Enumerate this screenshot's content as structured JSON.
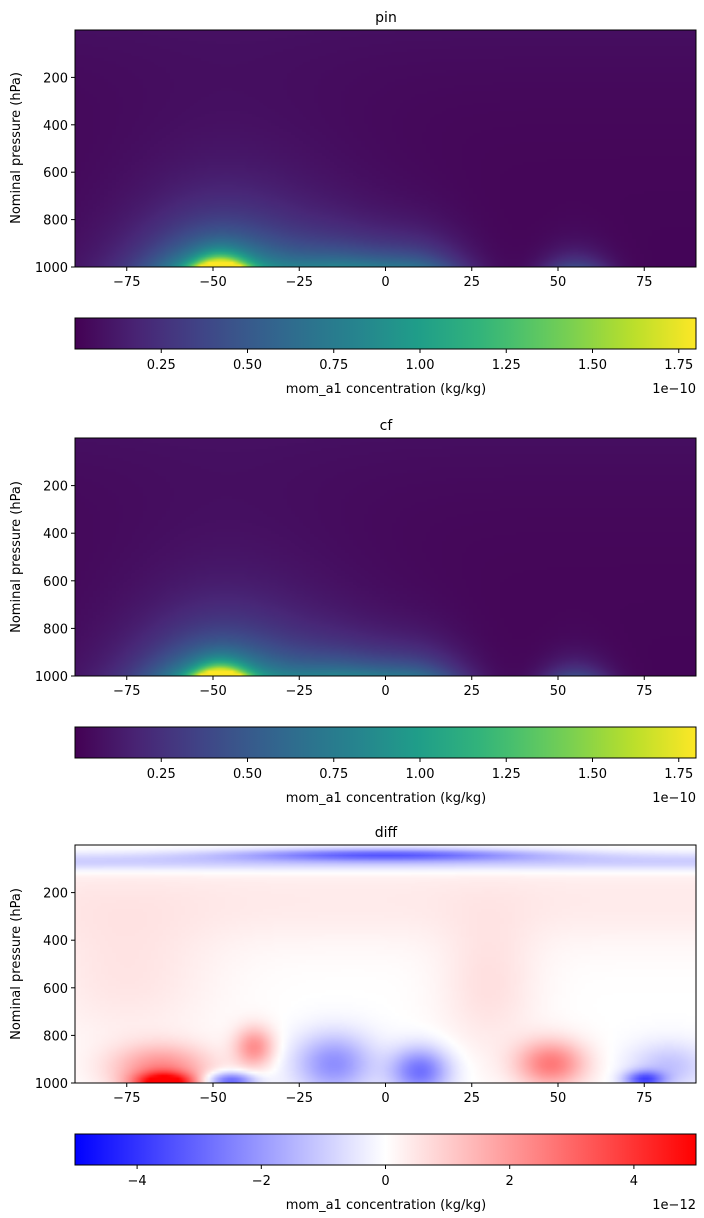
{
  "chart_data": [
    {
      "type": "heatmap",
      "title": "pin",
      "ylabel": "Nominal pressure (hPa)",
      "xlabel": "",
      "xlim": [
        -90,
        90
      ],
      "ylim": [
        1000,
        0
      ],
      "xticks": [
        "−75",
        "−50",
        "−25",
        "0",
        "25",
        "50",
        "75"
      ],
      "xtick_values": [
        -75,
        -50,
        -25,
        0,
        25,
        50,
        75
      ],
      "yticks": [
        "200",
        "400",
        "600",
        "800",
        "1000"
      ],
      "ytick_values": [
        200,
        400,
        600,
        800,
        1000
      ],
      "colormap": "viridis",
      "colorbar": {
        "label": "mom_a1 concentration (kg/kg)",
        "range": [
          0.0,
          1.8
        ],
        "ticks": [
          "0.25",
          "0.50",
          "0.75",
          "1.00",
          "1.25",
          "1.50",
          "1.75"
        ],
        "tick_values": [
          0.25,
          0.5,
          0.75,
          1.0,
          1.25,
          1.5,
          1.75
        ],
        "offset_label": "1e−10"
      },
      "features": [
        {
          "lat": -48,
          "pressure": 1000,
          "value": 1.8
        },
        {
          "lat": -12,
          "pressure": 960,
          "value": 0.6
        },
        {
          "lat": 10,
          "pressure": 960,
          "value": 0.55
        },
        {
          "lat": 55,
          "pressure": 990,
          "value": 0.45
        }
      ]
    },
    {
      "type": "heatmap",
      "title": "cf",
      "ylabel": "Nominal pressure (hPa)",
      "xlabel": "",
      "xlim": [
        -90,
        90
      ],
      "ylim": [
        1000,
        0
      ],
      "xticks": [
        "−75",
        "−50",
        "−25",
        "0",
        "25",
        "50",
        "75"
      ],
      "xtick_values": [
        -75,
        -50,
        -25,
        0,
        25,
        50,
        75
      ],
      "yticks": [
        "200",
        "400",
        "600",
        "800",
        "1000"
      ],
      "ytick_values": [
        200,
        400,
        600,
        800,
        1000
      ],
      "colormap": "viridis",
      "colorbar": {
        "label": "mom_a1 concentration (kg/kg)",
        "range": [
          0.0,
          1.8
        ],
        "ticks": [
          "0.25",
          "0.50",
          "0.75",
          "1.00",
          "1.25",
          "1.50",
          "1.75"
        ],
        "tick_values": [
          0.25,
          0.5,
          0.75,
          1.0,
          1.25,
          1.5,
          1.75
        ],
        "offset_label": "1e−10"
      },
      "features": [
        {
          "lat": -48,
          "pressure": 1000,
          "value": 1.8
        },
        {
          "lat": -12,
          "pressure": 960,
          "value": 0.6
        },
        {
          "lat": 10,
          "pressure": 960,
          "value": 0.55
        },
        {
          "lat": 55,
          "pressure": 990,
          "value": 0.45
        }
      ]
    },
    {
      "type": "heatmap",
      "title": "diff",
      "ylabel": "Nominal pressure (hPa)",
      "xlabel": "",
      "xlim": [
        -90,
        90
      ],
      "ylim": [
        1000,
        0
      ],
      "xticks": [
        "−75",
        "−50",
        "−25",
        "0",
        "25",
        "50",
        "75"
      ],
      "xtick_values": [
        -75,
        -50,
        -25,
        0,
        25,
        50,
        75
      ],
      "yticks": [
        "200",
        "400",
        "600",
        "800",
        "1000"
      ],
      "ytick_values": [
        200,
        400,
        600,
        800,
        1000
      ],
      "colormap": "bwr",
      "colorbar": {
        "label": "mom_a1 concentration (kg/kg)",
        "range": [
          -5,
          5
        ],
        "ticks": [
          "−4",
          "−2",
          "0",
          "2",
          "4"
        ],
        "tick_values": [
          -4,
          -2,
          0,
          2,
          4
        ],
        "offset_label": "1e−12"
      },
      "features": [
        {
          "lat": -62,
          "pressure": 1000,
          "value": 5
        },
        {
          "lat": -45,
          "pressure": 990,
          "value": -3
        },
        {
          "lat": -38,
          "pressure": 850,
          "value": 2
        },
        {
          "lat": -15,
          "pressure": 930,
          "value": -2
        },
        {
          "lat": 10,
          "pressure": 950,
          "value": -2.5
        },
        {
          "lat": 48,
          "pressure": 920,
          "value": 2.5
        },
        {
          "lat": 75,
          "pressure": 980,
          "value": -3
        },
        {
          "lat": 0,
          "pressure": 40,
          "value": -2.5
        }
      ]
    }
  ]
}
